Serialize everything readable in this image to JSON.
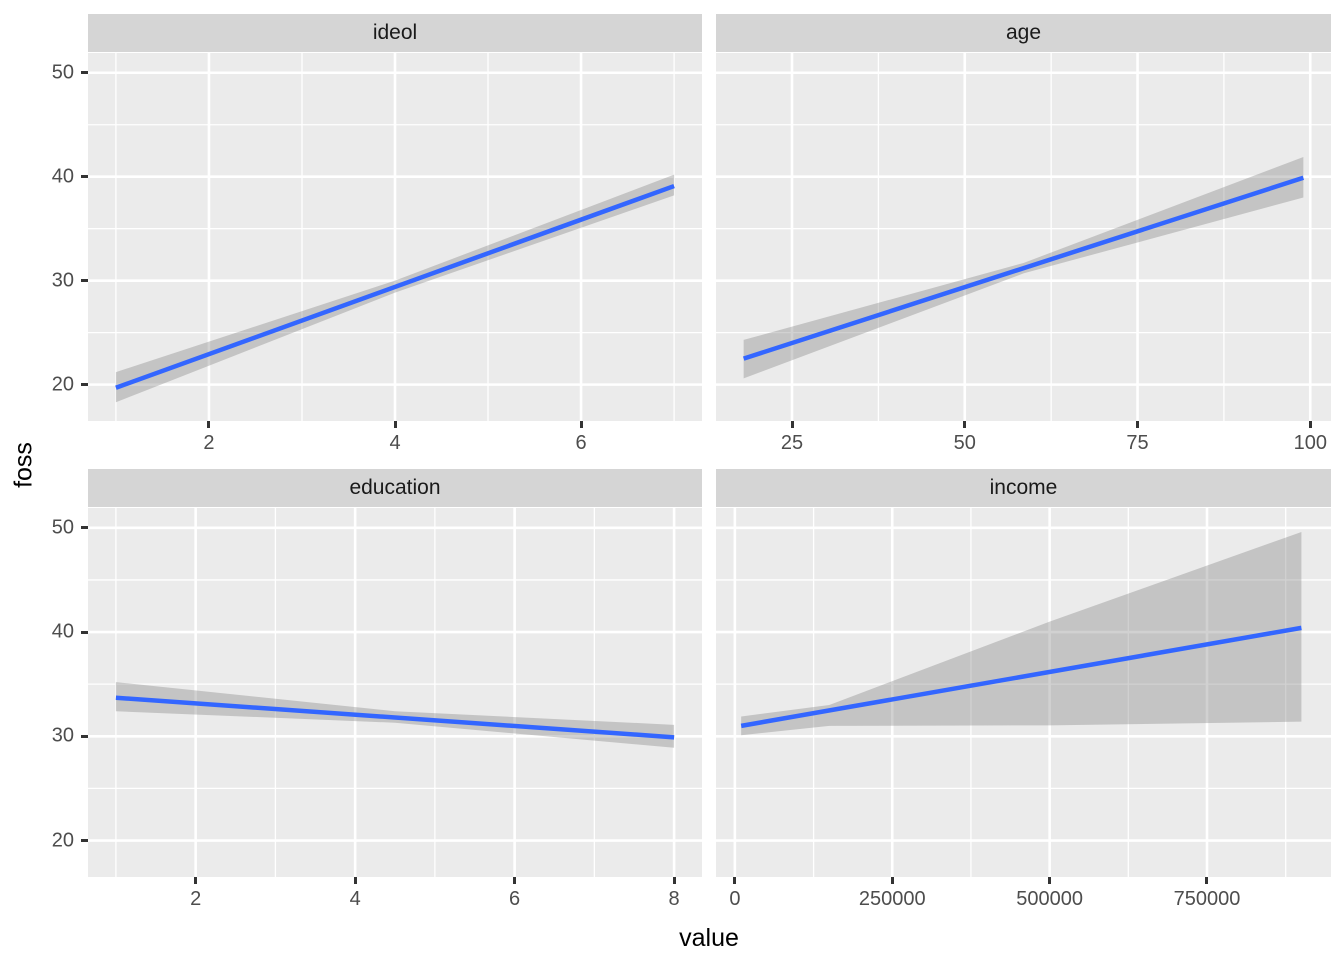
{
  "figure": {
    "background": "#FFFFFF",
    "panel_background": "#EBEBEB",
    "strip_background": "#D5D5D5",
    "gridline_color": "#FFFFFF",
    "line_color": "#3366FF",
    "ribbon_color": "#7F7F7F",
    "tick_color": "#333333",
    "tick_label_color": "#4D4D4D"
  },
  "chart_data": {
    "type": "line",
    "title": "",
    "xlabel": "value",
    "ylabel": "foss",
    "grid": "on",
    "legend": "none",
    "y_domain": [
      16.5,
      51.9
    ],
    "y_major": [
      50,
      40,
      30,
      20
    ],
    "y_minor": [
      25,
      35,
      45
    ],
    "y_tick_labels": [
      "50",
      "40",
      "30",
      "20"
    ],
    "facets": [
      {
        "label": "ideol",
        "x_domain": [
          0.7,
          7.3
        ],
        "x_major": [
          2,
          4,
          6
        ],
        "x_minor": [
          1,
          3,
          5,
          7
        ],
        "x_tick_labels": [
          "2",
          "4",
          "6"
        ],
        "line": {
          "x": [
            1,
            7
          ],
          "y": [
            19.7,
            39.1
          ]
        },
        "ribbon": {
          "x": [
            1,
            4,
            7
          ],
          "upper": [
            21.2,
            30.0,
            40.2
          ],
          "lower": [
            18.3,
            28.85,
            38.2
          ]
        }
      },
      {
        "label": "age",
        "x_domain": [
          14,
          103
        ],
        "x_major": [
          25,
          50,
          75,
          100
        ],
        "x_minor": [
          37.5,
          62.5,
          87.5
        ],
        "x_tick_labels": [
          "25",
          "50",
          "75",
          "100"
        ],
        "line": {
          "x": [
            18,
            99
          ],
          "y": [
            22.5,
            39.9
          ]
        },
        "ribbon": {
          "x": [
            18,
            58.5,
            99
          ],
          "upper": [
            24.3,
            31.7,
            41.9
          ],
          "lower": [
            20.6,
            30.7,
            38.0
          ]
        }
      },
      {
        "label": "education",
        "x_domain": [
          0.65,
          8.35
        ],
        "x_major": [
          2,
          4,
          6,
          8
        ],
        "x_minor": [
          1,
          3,
          5,
          7
        ],
        "x_tick_labels": [
          "2",
          "4",
          "6",
          "8"
        ],
        "line": {
          "x": [
            1,
            8
          ],
          "y": [
            33.7,
            29.9
          ]
        },
        "ribbon": {
          "x": [
            1,
            4.5,
            8
          ],
          "upper": [
            35.2,
            32.4,
            31.1
          ],
          "lower": [
            32.4,
            31.3,
            28.9
          ]
        }
      },
      {
        "label": "income",
        "x_domain": [
          -30000,
          947000
        ],
        "x_major": [
          0,
          250000,
          500000,
          750000
        ],
        "x_minor": [
          125000,
          375000,
          625000,
          875000
        ],
        "x_tick_labels": [
          "0",
          "250000",
          "500000",
          "750000"
        ],
        "line": {
          "x": [
            10000,
            900000
          ],
          "y": [
            31.0,
            40.4
          ]
        },
        "ribbon": {
          "x": [
            10000,
            150000,
            500000,
            900000
          ],
          "upper": [
            31.9,
            33.0,
            41.0,
            49.6
          ],
          "lower": [
            30.1,
            31.0,
            31.05,
            31.4
          ]
        }
      }
    ]
  }
}
